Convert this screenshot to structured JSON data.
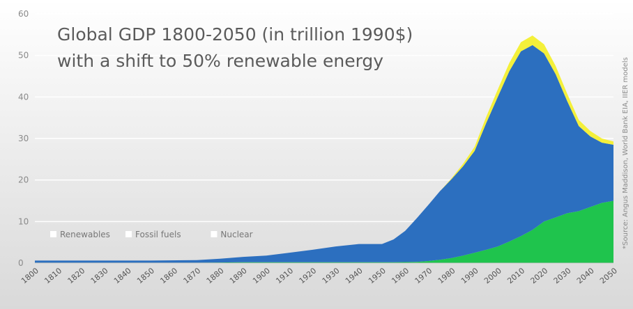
{
  "chart_data": {
    "type": "area",
    "stacked": true,
    "title_lines": [
      "Global GDP 1800-2050 (in trillion 1990$)",
      "with a shift to 50% renewable energy"
    ],
    "xlabel": "",
    "ylabel": "",
    "source_note": "*Source: Angus Maddison, World Bank EIA, IIER models",
    "ylim": [
      0,
      60
    ],
    "xlim": [
      1800,
      2050
    ],
    "y_ticks": [
      0,
      10,
      20,
      30,
      40,
      50,
      60
    ],
    "x_ticks": [
      1800,
      1810,
      1820,
      1830,
      1840,
      1850,
      1860,
      1870,
      1880,
      1890,
      1900,
      1910,
      1920,
      1930,
      1940,
      1950,
      1960,
      1970,
      1980,
      1990,
      2000,
      2010,
      2020,
      2030,
      2040,
      2050
    ],
    "grid": "horizontal",
    "legend_position": "bottom-left",
    "x": [
      1800,
      1850,
      1870,
      1880,
      1890,
      1900,
      1910,
      1920,
      1930,
      1940,
      1950,
      1955,
      1960,
      1965,
      1970,
      1975,
      1980,
      1985,
      1990,
      1995,
      2000,
      2005,
      2010,
      2015,
      2020,
      2025,
      2030,
      2035,
      2040,
      2045,
      2050
    ],
    "series": [
      {
        "name": "Renewables",
        "color": "#1fc44d",
        "values": [
          0.1,
          0.1,
          0.1,
          0.15,
          0.2,
          0.2,
          0.2,
          0.2,
          0.2,
          0.2,
          0.2,
          0.2,
          0.25,
          0.3,
          0.5,
          0.8,
          1.2,
          1.8,
          2.5,
          3.2,
          4.0,
          5.2,
          6.5,
          8.0,
          10.0,
          11.0,
          12.0,
          12.5,
          13.5,
          14.5,
          15.0
        ]
      },
      {
        "name": "Fossil fuels",
        "color": "#2c6fbf",
        "values": [
          0.5,
          0.5,
          0.6,
          0.9,
          1.3,
          1.6,
          2.3,
          3.0,
          3.8,
          4.4,
          4.4,
          5.5,
          7.5,
          10.5,
          13.5,
          16.5,
          19.0,
          21.5,
          24.5,
          30.5,
          36.0,
          41.0,
          44.5,
          44.5,
          40.5,
          34.5,
          27.0,
          20.5,
          17.0,
          14.5,
          13.5
        ]
      },
      {
        "name": "Nuclear",
        "color": "#f4f03a",
        "values": [
          0,
          0,
          0,
          0,
          0,
          0,
          0,
          0,
          0,
          0,
          0,
          0,
          0,
          0,
          0,
          0,
          0.2,
          0.6,
          1.0,
          1.5,
          1.8,
          2.0,
          2.2,
          2.3,
          2.2,
          2.0,
          1.8,
          1.5,
          1.3,
          1.0,
          0.8
        ]
      }
    ]
  }
}
